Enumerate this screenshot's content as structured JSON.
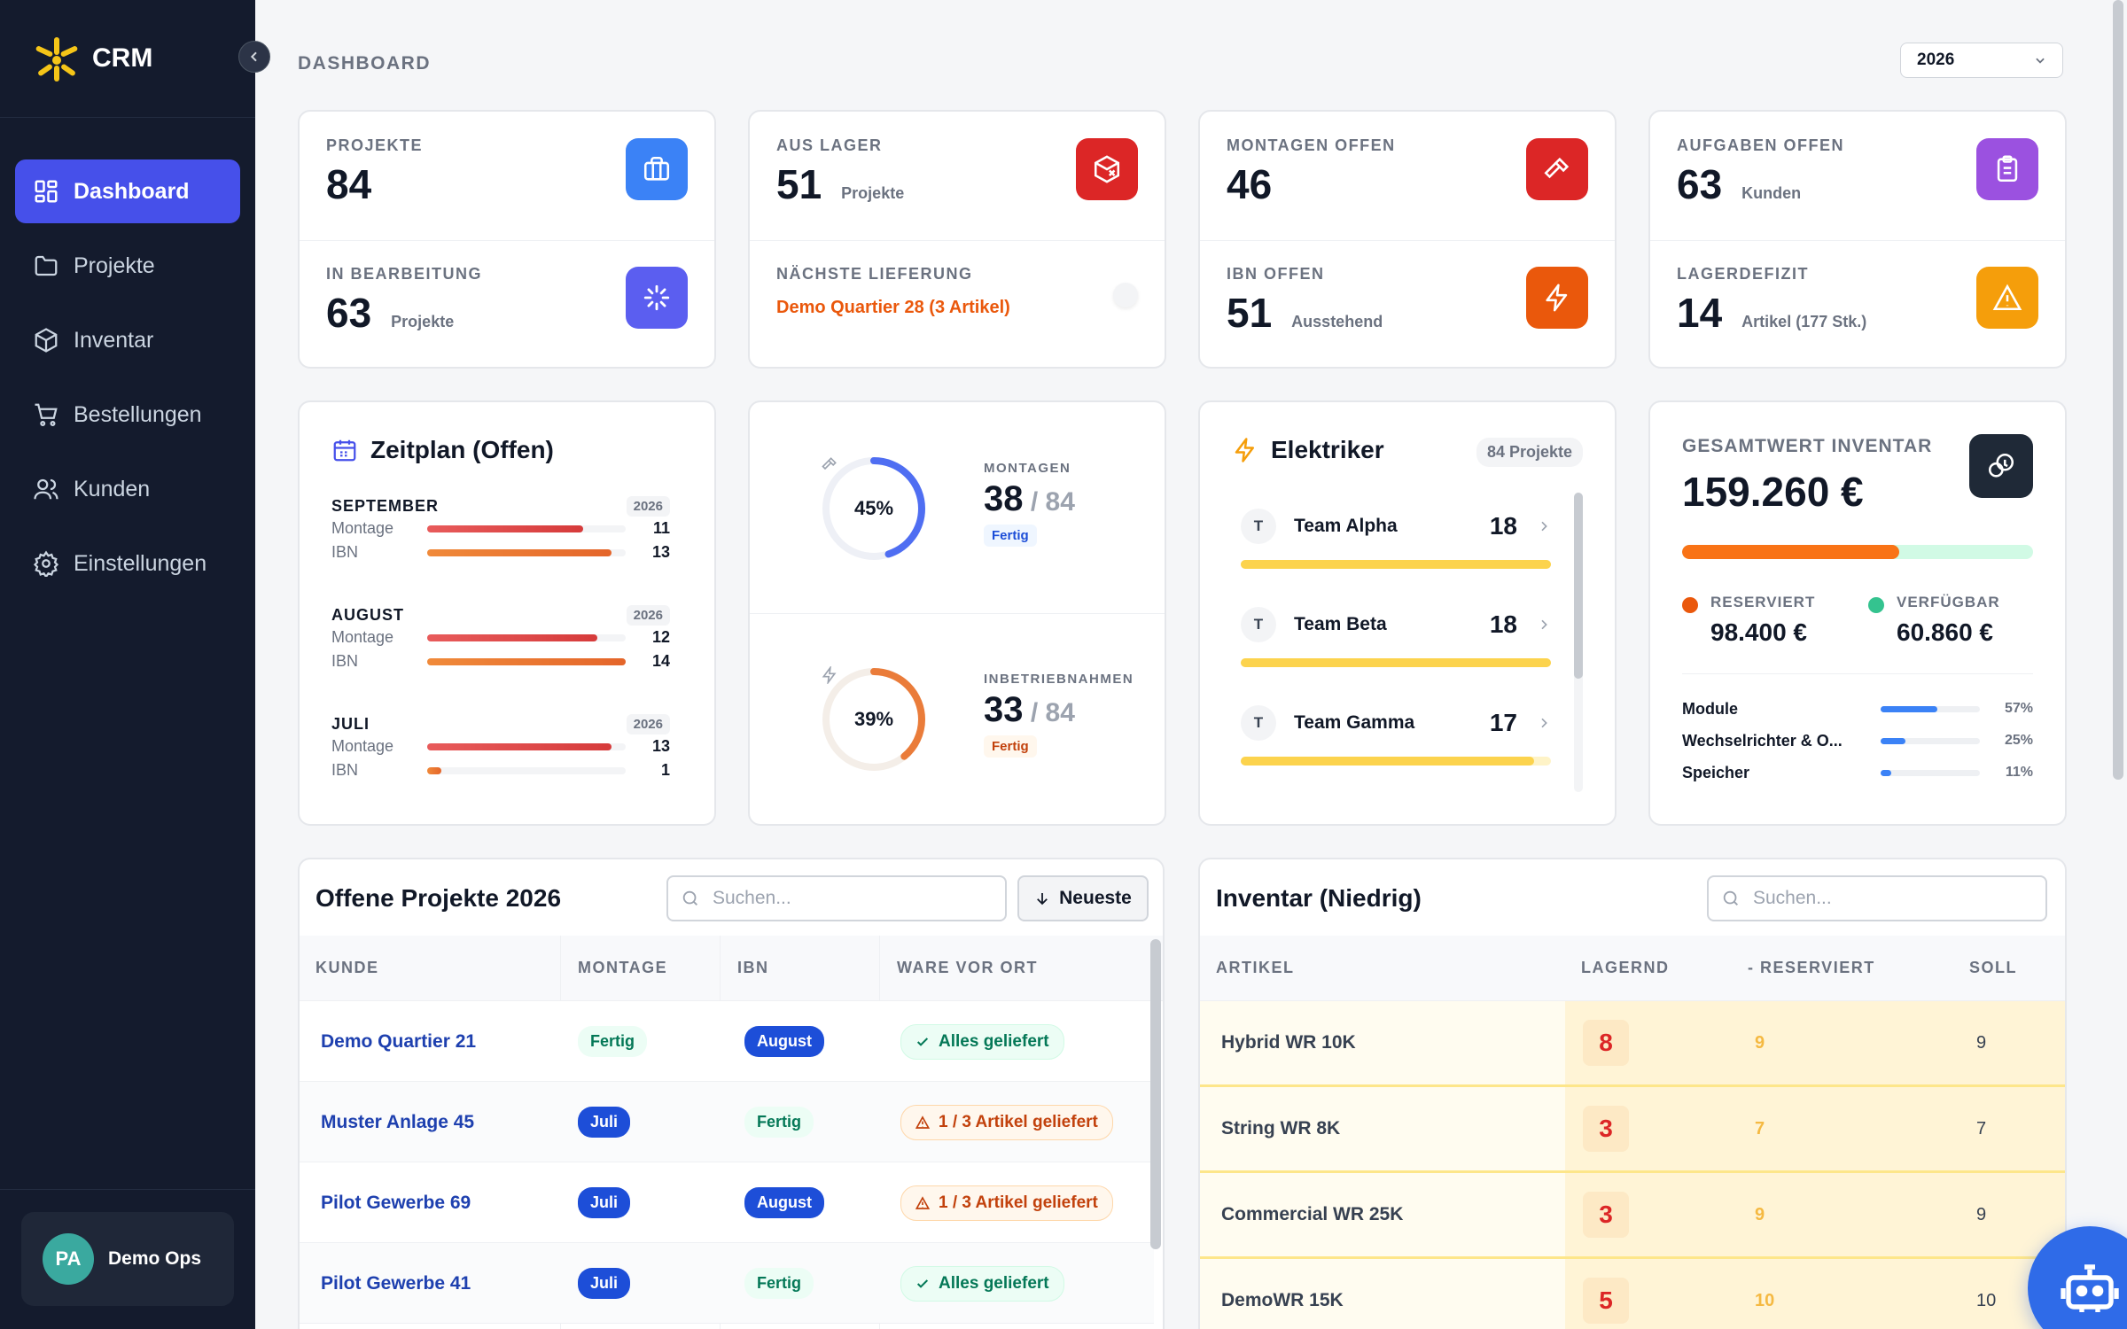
{
  "app": {
    "name": "CRM"
  },
  "sidebar": {
    "items": [
      {
        "label": "Dashboard",
        "icon": "grid-icon"
      },
      {
        "label": "Projekte",
        "icon": "folder-icon"
      },
      {
        "label": "Inventar",
        "icon": "box-icon"
      },
      {
        "label": "Bestellungen",
        "icon": "cart-icon"
      },
      {
        "label": "Kunden",
        "icon": "users-icon"
      },
      {
        "label": "Einstellungen",
        "icon": "gear-icon"
      }
    ],
    "user": {
      "initials": "PA",
      "name": "Demo Ops"
    }
  },
  "header": {
    "title": "DASHBOARD",
    "year": "2026"
  },
  "kpis": {
    "projekte": {
      "label": "PROJEKTE",
      "value": "84"
    },
    "in_bearbeitung": {
      "label": "IN BEARBEITUNG",
      "value": "63",
      "sub": "Projekte"
    },
    "aus_lager": {
      "label": "AUS LAGER",
      "value": "51",
      "sub": "Projekte"
    },
    "naechste_lieferung": {
      "label": "NÄCHSTE LIEFERUNG",
      "value": "Demo Quartier 28 (3 Artikel)"
    },
    "montagen_offen": {
      "label": "MONTAGEN OFFEN",
      "value": "46"
    },
    "ibn_offen": {
      "label": "IBN OFFEN",
      "value": "51",
      "sub": "Ausstehend"
    },
    "aufgaben_offen": {
      "label": "AUFGABEN OFFEN",
      "value": "63",
      "sub": "Kunden"
    },
    "lagerdefizit": {
      "label": "LAGERDEFIZIT",
      "value": "14",
      "sub": "Artikel (177 Stk.)"
    }
  },
  "colors": {
    "accent": "#4650ea",
    "orange": "#ea580c",
    "red": "#dc2626",
    "purple": "#8b5cf6",
    "amber": "#f59e0b",
    "blue": "#3b82f6"
  },
  "zeitplan": {
    "title": "Zeitplan (Offen)",
    "max": 14,
    "months": [
      {
        "name": "SEPTEMBER",
        "year": "2026",
        "rows": [
          {
            "label": "Montage",
            "value": 11
          },
          {
            "label": "IBN",
            "value": 13
          }
        ]
      },
      {
        "name": "AUGUST",
        "year": "2026",
        "rows": [
          {
            "label": "Montage",
            "value": 12
          },
          {
            "label": "IBN",
            "value": 14
          }
        ]
      },
      {
        "name": "JULI",
        "year": "2026",
        "rows": [
          {
            "label": "Montage",
            "value": 13
          },
          {
            "label": "IBN",
            "value": 1
          }
        ]
      }
    ]
  },
  "progress": {
    "montagen": {
      "label": "MONTAGEN",
      "percent": 45,
      "pct_text": "45%",
      "done": "38",
      "total": "84",
      "badge": "Fertig"
    },
    "inbetriebnahmen": {
      "label": "INBETRIEBNAHMEN",
      "percent": 39,
      "pct_text": "39%",
      "done": "33",
      "total": "84",
      "badge": "Fertig"
    }
  },
  "elektriker": {
    "title": "Elektriker",
    "badge": "84 Projekte",
    "max": 18,
    "teams": [
      {
        "initial": "T",
        "name": "Team Alpha",
        "count": 18
      },
      {
        "initial": "T",
        "name": "Team Beta",
        "count": 18
      },
      {
        "initial": "T",
        "name": "Team Gamma",
        "count": 17
      }
    ]
  },
  "inventar_wert": {
    "title": "GESAMTWERT INVENTAR",
    "value": "159.260 €",
    "reserved_fraction": 0.618,
    "reserviert_label": "RESERVIERT",
    "reserviert_value": "98.400 €",
    "verfuegbar_label": "VERFÜGBAR",
    "verfuegbar_value": "60.860 €",
    "categories": [
      {
        "label": "Module",
        "percent": 57,
        "pct_text": "57%"
      },
      {
        "label": "Wechselrichter & O...",
        "percent": 25,
        "pct_text": "25%"
      },
      {
        "label": "Speicher",
        "percent": 11,
        "pct_text": "11%"
      }
    ]
  },
  "offene_projekte": {
    "title": "Offene Projekte 2026",
    "search_placeholder": "Suchen...",
    "sort_label": "Neueste",
    "columns": [
      "KUNDE",
      "MONTAGE",
      "IBN",
      "WARE VOR ORT"
    ],
    "rows": [
      {
        "kunde": "Demo Quartier 21",
        "montage": "Fertig",
        "montage_style": "green",
        "ibn": "August",
        "ibn_style": "blue",
        "ware": "Alles geliefert",
        "ware_ok": true
      },
      {
        "kunde": "Muster Anlage 45",
        "montage": "Juli",
        "montage_style": "blue",
        "ibn": "Fertig",
        "ibn_style": "green",
        "ware": "1 / 3 Artikel geliefert",
        "ware_ok": false
      },
      {
        "kunde": "Pilot Gewerbe 69",
        "montage": "Juli",
        "montage_style": "blue",
        "ibn": "August",
        "ibn_style": "blue",
        "ware": "1 / 3 Artikel geliefert",
        "ware_ok": false
      },
      {
        "kunde": "Pilot Gewerbe 41",
        "montage": "Juli",
        "montage_style": "blue",
        "ibn": "Fertig",
        "ibn_style": "green",
        "ware": "Alles geliefert",
        "ware_ok": true
      }
    ]
  },
  "inventar_niedrig": {
    "title": "Inventar (Niedrig)",
    "search_placeholder": "Suchen...",
    "columns": [
      "ARTIKEL",
      "LAGERND",
      "- RESERVIERT",
      "SOLL"
    ],
    "rows": [
      {
        "artikel": "Hybrid WR 10K",
        "lagernd": "8",
        "reserviert": "9",
        "soll": "9"
      },
      {
        "artikel": "String WR 8K",
        "lagernd": "3",
        "reserviert": "7",
        "soll": "7"
      },
      {
        "artikel": "Commercial WR 25K",
        "lagernd": "3",
        "reserviert": "9",
        "soll": "9"
      },
      {
        "artikel": "DemoWR 15K",
        "lagernd": "5",
        "reserviert": "10",
        "soll": "10"
      }
    ]
  }
}
